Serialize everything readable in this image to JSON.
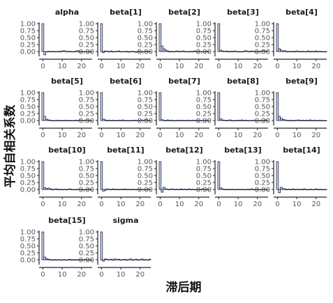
{
  "chart_data": {
    "type": "bar",
    "xlabel": "滞后期",
    "ylabel": "平均自相关系数",
    "lags": [
      0,
      1,
      2,
      3,
      4,
      5,
      6,
      7,
      8,
      9,
      10,
      11,
      12,
      13,
      14,
      15,
      16,
      17,
      18,
      19,
      20,
      21,
      22,
      23,
      24,
      25
    ],
    "xticks": [
      0,
      10,
      20
    ],
    "yticks": [
      1.0,
      0.75,
      0.5,
      0.25,
      0.0
    ],
    "ytick_labels": [
      "1.00",
      "0.75",
      "0.50",
      "0.25",
      "0.00"
    ],
    "xlim": [
      0,
      25
    ],
    "ylim": [
      -0.1,
      1.0
    ],
    "grid": false,
    "series": [
      {
        "name": "alpha",
        "values": [
          1.0,
          -0.12,
          0.0,
          0.01,
          0.0,
          0.01,
          -0.01,
          0.0,
          0.01,
          0.0,
          0.02,
          0.03,
          0.01,
          0.0,
          0.01,
          -0.01,
          0.0,
          0.01,
          0.03,
          -0.02,
          0.0,
          -0.01,
          0.0,
          -0.01,
          -0.02,
          0.0
        ]
      },
      {
        "name": "beta[1]",
        "values": [
          1.0,
          -0.04,
          0.02,
          0.01,
          0.0,
          0.02,
          0.0,
          -0.01,
          0.01,
          0.02,
          0.0,
          -0.01,
          0.0,
          0.01,
          -0.02,
          -0.01,
          0.01,
          0.0,
          -0.03,
          0.01,
          0.0,
          -0.02,
          0.0,
          0.01,
          -0.01,
          0.0
        ]
      },
      {
        "name": "beta[2]",
        "values": [
          1.0,
          0.2,
          0.1,
          0.05,
          0.02,
          0.0,
          0.01,
          0.0,
          0.01,
          0.02,
          0.0,
          0.01,
          0.02,
          0.0,
          -0.01,
          0.0,
          0.01,
          0.0,
          0.02,
          0.0,
          0.01,
          0.0,
          -0.01,
          0.0,
          0.01,
          0.0
        ]
      },
      {
        "name": "beta[3]",
        "values": [
          1.0,
          0.05,
          0.02,
          0.01,
          0.02,
          0.0,
          0.01,
          0.0,
          0.02,
          0.01,
          0.0,
          -0.01,
          0.0,
          0.01,
          0.03,
          0.01,
          0.0,
          0.02,
          0.01,
          0.0,
          0.01,
          0.0,
          0.02,
          0.03,
          0.01,
          0.02
        ]
      },
      {
        "name": "beta[4]",
        "values": [
          1.0,
          0.1,
          0.05,
          0.02,
          0.03,
          0.0,
          0.01,
          0.0,
          0.01,
          0.0,
          0.02,
          0.01,
          0.0,
          0.01,
          0.0,
          -0.01,
          0.02,
          0.0,
          0.01,
          0.0,
          0.02,
          0.0,
          0.01,
          0.0,
          0.0,
          0.0
        ]
      },
      {
        "name": "beta[5]",
        "values": [
          1.0,
          0.15,
          0.05,
          0.02,
          0.01,
          0.0,
          -0.01,
          0.0,
          0.01,
          0.0,
          -0.01,
          0.0,
          0.01,
          0.0,
          0.0,
          -0.01,
          0.0,
          0.01,
          0.0,
          0.02,
          0.01,
          0.0,
          0.01,
          0.02,
          0.0,
          0.0
        ]
      },
      {
        "name": "beta[6]",
        "values": [
          1.0,
          0.05,
          0.02,
          0.0,
          0.01,
          0.0,
          0.01,
          0.0,
          0.0,
          0.01,
          0.0,
          0.02,
          0.0,
          0.0,
          -0.01,
          0.0,
          0.0,
          0.01,
          0.0,
          0.01,
          0.0,
          0.02,
          0.0,
          0.03,
          0.0,
          0.0
        ]
      },
      {
        "name": "beta[7]",
        "values": [
          1.0,
          0.03,
          0.01,
          0.0,
          0.02,
          0.0,
          0.01,
          0.0,
          0.0,
          0.01,
          0.0,
          0.01,
          0.0,
          0.0,
          0.01,
          0.0,
          0.0,
          0.01,
          0.0,
          0.01,
          0.0,
          0.0,
          0.01,
          0.0,
          0.01,
          0.0
        ]
      },
      {
        "name": "beta[8]",
        "values": [
          1.0,
          0.06,
          0.02,
          0.01,
          0.0,
          0.01,
          0.02,
          0.0,
          -0.01,
          0.0,
          0.01,
          0.0,
          0.02,
          0.0,
          0.01,
          0.0,
          -0.01,
          0.0,
          0.01,
          0.0,
          -0.01,
          0.0,
          0.01,
          0.0,
          0.02,
          0.0
        ]
      },
      {
        "name": "beta[9]",
        "values": [
          1.0,
          0.15,
          0.08,
          0.04,
          0.02,
          0.01,
          0.0,
          0.01,
          0.0,
          0.0,
          0.01,
          0.02,
          0.0,
          0.01,
          0.0,
          0.01,
          0.0,
          0.02,
          0.0,
          0.01,
          0.0,
          0.0,
          0.01,
          0.0,
          0.0,
          0.0
        ]
      },
      {
        "name": "beta[10]",
        "values": [
          1.0,
          0.07,
          0.03,
          0.05,
          0.02,
          0.0,
          0.01,
          0.02,
          0.0,
          0.01,
          0.0,
          0.01,
          0.0,
          0.01,
          0.02,
          0.0,
          -0.01,
          0.0,
          0.01,
          0.0,
          0.0,
          -0.02,
          -0.01,
          0.0,
          0.01,
          0.0
        ]
      },
      {
        "name": "beta[11]",
        "values": [
          1.0,
          -0.06,
          -0.03,
          0.02,
          0.01,
          0.0,
          0.02,
          0.0,
          0.01,
          0.0,
          0.01,
          0.0,
          0.02,
          0.0,
          0.01,
          0.0,
          0.01,
          0.0,
          0.0,
          0.01,
          0.0,
          0.01,
          0.0,
          0.0,
          0.01,
          0.0
        ]
      },
      {
        "name": "beta[12]",
        "values": [
          1.0,
          -0.1,
          0.08,
          0.02,
          0.01,
          0.0,
          0.02,
          0.01,
          0.0,
          0.01,
          0.0,
          0.02,
          0.0,
          0.01,
          0.0,
          0.02,
          0.0,
          0.01,
          0.0,
          0.0,
          0.01,
          0.0,
          0.02,
          0.0,
          0.01,
          0.0
        ]
      },
      {
        "name": "beta[13]",
        "values": [
          1.0,
          0.06,
          0.02,
          0.01,
          0.0,
          0.01,
          0.0,
          0.01,
          0.0,
          0.0,
          0.01,
          0.0,
          0.01,
          0.0,
          0.0,
          0.01,
          0.0,
          0.02,
          0.0,
          0.0,
          0.01,
          0.0,
          0.0,
          0.01,
          0.0,
          0.0
        ]
      },
      {
        "name": "beta[14]",
        "values": [
          1.0,
          -0.12,
          0.08,
          0.03,
          0.02,
          0.0,
          0.01,
          0.0,
          0.02,
          0.0,
          0.01,
          0.0,
          0.01,
          0.0,
          0.02,
          0.0,
          0.0,
          0.01,
          0.0,
          0.0,
          0.02,
          0.0,
          0.01,
          0.0,
          0.0,
          0.0
        ]
      },
      {
        "name": "beta[15]",
        "values": [
          1.0,
          0.1,
          0.04,
          0.02,
          0.01,
          0.0,
          0.01,
          0.0,
          0.01,
          -0.01,
          0.0,
          0.01,
          -0.01,
          0.0,
          0.02,
          0.0,
          0.01,
          0.0,
          0.01,
          0.0,
          0.01,
          0.0,
          0.02,
          0.0,
          0.01,
          0.0
        ]
      },
      {
        "name": "sigma",
        "values": [
          1.0,
          -0.05,
          0.03,
          0.02,
          0.01,
          0.02,
          0.0,
          0.03,
          0.01,
          0.02,
          0.0,
          0.01,
          0.02,
          0.0,
          0.01,
          0.03,
          0.0,
          0.01,
          0.02,
          0.0,
          0.01,
          0.03,
          0.0,
          0.01,
          0.0,
          0.02
        ]
      }
    ]
  },
  "colors": {
    "bar_fill": "#d2d8ec",
    "bar_stroke": "#1a2244",
    "axis_line": "#222222",
    "tick_label": "#555555",
    "title_text": "#1a1a1a"
  }
}
